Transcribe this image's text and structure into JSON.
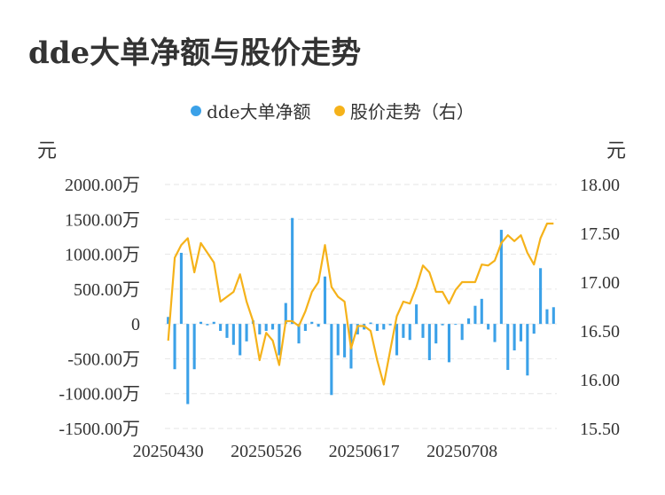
{
  "title": "dde大单净额与股价走势",
  "legend": {
    "bar_label": "dde大单净额",
    "line_label": "股价走势（右）"
  },
  "colors": {
    "bar": "#3ba1e8",
    "line": "#f5b21a",
    "grid": "#e6e6e6",
    "text": "#333333"
  },
  "chart_data": {
    "type": "bar+line",
    "title": "dde大单净额与股价走势",
    "y_left_unit": "元",
    "y_right_unit": "元",
    "y_left_ticks": [
      "2000.00万",
      "1500.00万",
      "1000.00万",
      "500.00万",
      "0",
      "-500.00万",
      "-1000.00万",
      "-1500.00万"
    ],
    "y_left_tick_values": [
      2000,
      1500,
      1000,
      500,
      0,
      -500,
      -1000,
      -1500
    ],
    "y_right_ticks": [
      "18.00",
      "17.50",
      "17.00",
      "16.50",
      "16.00",
      "15.50"
    ],
    "y_right_tick_values": [
      18.0,
      17.5,
      17.0,
      16.5,
      16.0,
      15.5
    ],
    "ylim_left": [
      -1500,
      2000
    ],
    "ylim_right": [
      15.5,
      18.0
    ],
    "x_tick_labels": [
      "20250430",
      "20250526",
      "20250617",
      "20250708"
    ],
    "x_tick_indices": [
      0,
      15,
      30,
      45
    ],
    "series": [
      {
        "name": "dde大单净额",
        "axis": "left",
        "values": [
          100,
          -650,
          1020,
          -1150,
          -650,
          30,
          -20,
          30,
          -100,
          -200,
          -300,
          -450,
          -250,
          50,
          -150,
          -100,
          -80,
          -450,
          300,
          1520,
          -280,
          -100,
          30,
          -40,
          680,
          -1020,
          -450,
          -480,
          -640,
          -150,
          -80,
          20,
          -100,
          -80,
          -20,
          -450,
          -200,
          -230,
          280,
          -200,
          -520,
          -280,
          -20,
          -550,
          -10,
          -230,
          80,
          260,
          360,
          -80,
          -260,
          1350,
          -660,
          -380,
          -250,
          -740,
          -140,
          800,
          210,
          240
        ],
        "unit": "万"
      },
      {
        "name": "股价走势（右）",
        "axis": "right",
        "values": [
          16.4,
          17.25,
          17.38,
          17.45,
          17.1,
          17.4,
          17.3,
          17.2,
          16.8,
          16.85,
          16.9,
          17.08,
          16.8,
          16.6,
          16.2,
          16.48,
          16.4,
          16.15,
          16.6,
          16.6,
          16.55,
          16.7,
          16.9,
          17.0,
          17.38,
          16.95,
          16.85,
          16.8,
          16.32,
          16.55,
          16.55,
          16.5,
          16.2,
          15.95,
          16.3,
          16.65,
          16.8,
          16.78,
          16.95,
          17.17,
          17.1,
          16.9,
          16.9,
          16.78,
          16.92,
          17.0,
          17.0,
          17.0,
          17.18,
          17.17,
          17.22,
          17.4,
          17.48,
          17.42,
          17.48,
          17.3,
          17.18,
          17.45,
          17.6,
          17.6
        ]
      }
    ],
    "grid": true,
    "legend_position": "top-center"
  }
}
